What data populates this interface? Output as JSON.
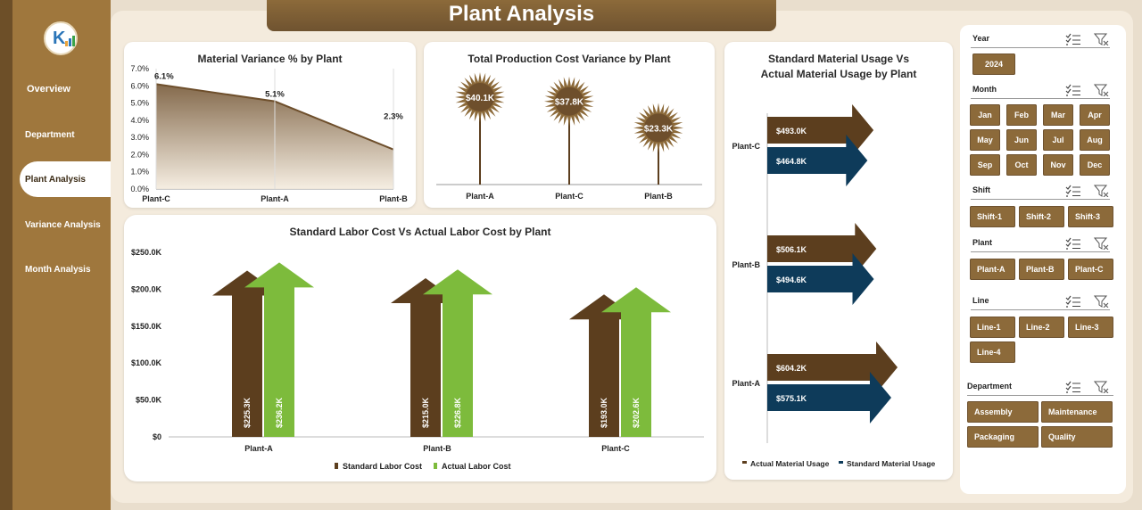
{
  "title": "Plant Analysis",
  "nav": {
    "items": [
      {
        "label": "Overview"
      },
      {
        "label": "Department"
      },
      {
        "label": "Plant Analysis"
      },
      {
        "label": "Variance Analysis"
      },
      {
        "label": "Month Analysis"
      }
    ],
    "active": "Plant Analysis"
  },
  "colors": {
    "brown": "#5c3e1e",
    "navy": "#0e3b5a",
    "green": "#7dbb3c",
    "accent": "#8c6a3a"
  },
  "chart_data": [
    {
      "id": "material-variance",
      "type": "area",
      "title": "Material Variance % by Plant",
      "categories": [
        "Plant-C",
        "Plant-A",
        "Plant-B"
      ],
      "values": [
        6.1,
        5.1,
        2.3
      ],
      "value_labels": [
        "6.1%",
        "5.1%",
        "2.3%"
      ],
      "y_ticks": [
        "0.0%",
        "1.0%",
        "2.0%",
        "3.0%",
        "4.0%",
        "5.0%",
        "6.0%",
        "7.0%"
      ],
      "ylim": [
        0,
        7
      ]
    },
    {
      "id": "production-cost-variance",
      "type": "scatter",
      "title": "Total Production Cost Variance by Plant",
      "categories": [
        "Plant-A",
        "Plant-C",
        "Plant-B"
      ],
      "values": [
        40.1,
        37.8,
        23.3
      ],
      "value_labels": [
        "$40.1K",
        "$37.8K",
        "$23.3K"
      ],
      "units": "K"
    },
    {
      "id": "labor-cost",
      "type": "bar",
      "title": "Standard Labor Cost Vs Actual Labor Cost by Plant",
      "categories": [
        "Plant-A",
        "Plant-B",
        "Plant-C"
      ],
      "series": [
        {
          "name": "Standard Labor Cost",
          "values": [
            225.3,
            215.0,
            193.0
          ],
          "labels": [
            "$225.3K",
            "$215.0K",
            "$193.0K"
          ]
        },
        {
          "name": "Actual Labor Cost",
          "values": [
            236.2,
            226.8,
            202.6
          ],
          "labels": [
            "$236.2K",
            "$226.8K",
            "$202.6K"
          ]
        }
      ],
      "y_ticks": [
        "$0",
        "$50.0K",
        "$100.0K",
        "$150.0K",
        "$200.0K",
        "$250.0K"
      ],
      "ylim": [
        0,
        250
      ],
      "legend_position": "bottom"
    },
    {
      "id": "material-usage",
      "type": "bar",
      "title_lines": [
        "Standard Material Usage Vs",
        "Actual Material Usage by Plant"
      ],
      "orientation": "horizontal",
      "categories": [
        "Plant-C",
        "Plant-B",
        "Plant-A"
      ],
      "series": [
        {
          "name": "Actual Material Usage",
          "values": [
            493.0,
            506.1,
            604.2
          ],
          "labels": [
            "$493.0K",
            "$506.1K",
            "$604.2K"
          ]
        },
        {
          "name": "Standard Material Usage",
          "values": [
            464.8,
            494.6,
            575.1
          ],
          "labels": [
            "$464.8K",
            "$494.6K",
            "$575.1K"
          ]
        }
      ],
      "legend_position": "bottom"
    }
  ],
  "slicers": [
    {
      "title": "Year",
      "items": [
        "2024"
      ]
    },
    {
      "title": "Month",
      "items": [
        "Jan",
        "Feb",
        "Mar",
        "Apr",
        "May",
        "Jun",
        "Jul",
        "Aug",
        "Sep",
        "Oct",
        "Nov",
        "Dec"
      ]
    },
    {
      "title": "Shift",
      "items": [
        "Shift-1",
        "Shift-2",
        "Shift-3"
      ]
    },
    {
      "title": "Plant",
      "items": [
        "Plant-A",
        "Plant-B",
        "Plant-C"
      ]
    },
    {
      "title": "Line",
      "items": [
        "Line-1",
        "Line-2",
        "Line-3",
        "Line-4"
      ]
    },
    {
      "title": "Department",
      "items": [
        "Assembly",
        "Maintenance",
        "Packaging",
        "Quality"
      ]
    }
  ]
}
